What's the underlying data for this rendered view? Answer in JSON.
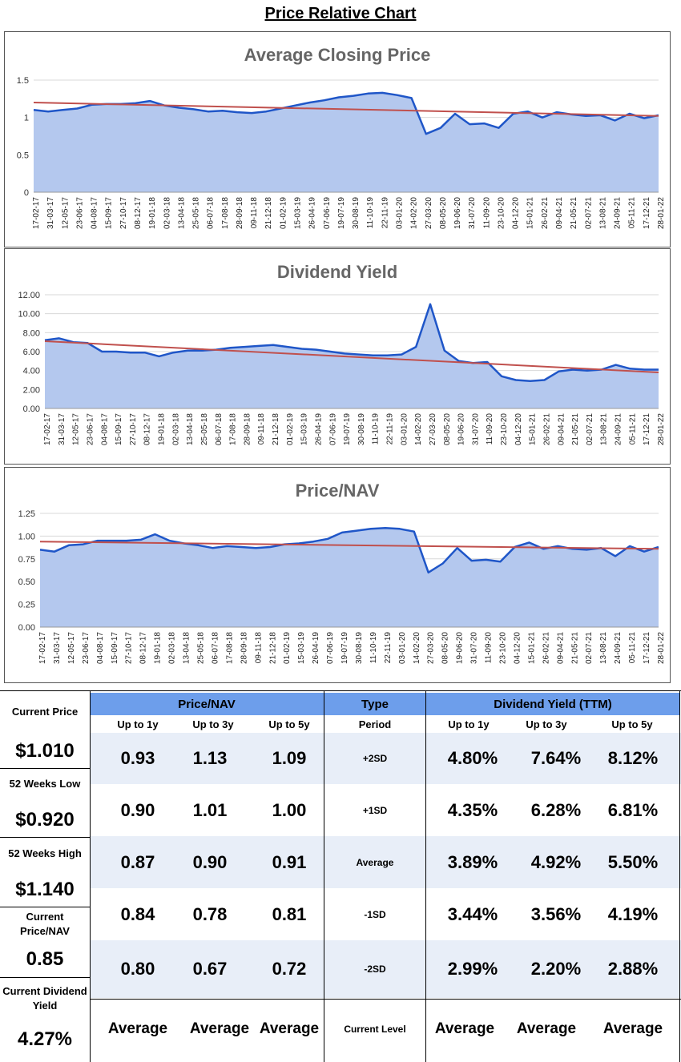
{
  "page": {
    "title": "Price Relative Chart"
  },
  "colors": {
    "area_fill": "#b4c8ee",
    "line": "#1f56c8",
    "trend": "#c0504d",
    "grid": "#d9d9d9",
    "header_blue": "#6d9eeb",
    "band": "#e8eef8"
  },
  "chart_data": [
    {
      "type": "area",
      "title": "Average Closing Price",
      "xlabel": "",
      "ylabel": "",
      "ylim": [
        0,
        1.5
      ],
      "yticks": [
        "0",
        "0.5",
        "1",
        "1.5"
      ],
      "ytick_values": [
        0,
        0.5,
        1,
        1.5
      ],
      "x_tick_labels": [
        "17-02-17",
        "31-03-17",
        "12-05-17",
        "23-06-17",
        "04-08-17",
        "15-09-17",
        "27-10-17",
        "08-12-17",
        "19-01-18",
        "02-03-18",
        "13-04-18",
        "25-05-18",
        "06-07-18",
        "17-08-18",
        "28-09-18",
        "09-11-18",
        "21-12-18",
        "01-02-19",
        "15-03-19",
        "26-04-19",
        "07-06-19",
        "19-07-19",
        "30-08-19",
        "11-10-19",
        "22-11-19",
        "03-01-20",
        "14-02-20",
        "27-03-20",
        "08-05-20",
        "19-06-20",
        "31-07-20",
        "11-09-20",
        "23-10-20",
        "04-12-20",
        "15-01-21",
        "26-02-21",
        "09-04-21",
        "21-05-21",
        "02-07-21",
        "13-08-21",
        "24-09-21",
        "05-11-21",
        "17-12-21",
        "28-01-22"
      ],
      "series": [
        {
          "name": "Average Closing Price",
          "values": [
            1.1,
            1.08,
            1.1,
            1.12,
            1.17,
            1.18,
            1.18,
            1.19,
            1.22,
            1.16,
            1.13,
            1.11,
            1.08,
            1.09,
            1.07,
            1.06,
            1.08,
            1.12,
            1.16,
            1.2,
            1.23,
            1.27,
            1.29,
            1.32,
            1.33,
            1.3,
            1.26,
            0.78,
            0.86,
            1.05,
            0.91,
            0.92,
            0.86,
            1.05,
            1.08,
            1.0,
            1.07,
            1.04,
            1.02,
            1.03,
            0.96,
            1.05,
            0.99,
            1.03
          ]
        }
      ],
      "trend": [
        1.2,
        1.02
      ]
    },
    {
      "type": "area",
      "title": "Dividend Yield",
      "xlabel": "",
      "ylabel": "",
      "ylim": [
        0,
        12
      ],
      "yticks": [
        "0.00",
        "2.00",
        "4.00",
        "6.00",
        "8.00",
        "10.00",
        "12.00"
      ],
      "ytick_values": [
        0,
        2,
        4,
        6,
        8,
        10,
        12
      ],
      "x_tick_labels": [
        "17-02-17",
        "31-03-17",
        "12-05-17",
        "23-06-17",
        "04-08-17",
        "15-09-17",
        "27-10-17",
        "08-12-17",
        "19-01-18",
        "02-03-18",
        "13-04-18",
        "25-05-18",
        "06-07-18",
        "17-08-18",
        "28-09-18",
        "09-11-18",
        "21-12-18",
        "01-02-19",
        "15-03-19",
        "26-04-19",
        "07-06-19",
        "19-07-19",
        "30-08-19",
        "11-10-19",
        "22-11-19",
        "03-01-20",
        "14-02-20",
        "27-03-20",
        "08-05-20",
        "19-06-20",
        "31-07-20",
        "11-09-20",
        "23-10-20",
        "04-12-20",
        "15-01-21",
        "26-02-21",
        "09-04-21",
        "21-05-21",
        "02-07-21",
        "13-08-21",
        "24-09-21",
        "05-11-21",
        "17-12-21",
        "28-01-22"
      ],
      "series": [
        {
          "name": "Dividend Yield",
          "values": [
            7.2,
            7.4,
            7.0,
            6.9,
            6.0,
            6.0,
            5.9,
            5.9,
            5.5,
            5.9,
            6.1,
            6.1,
            6.2,
            6.4,
            6.5,
            6.6,
            6.7,
            6.5,
            6.3,
            6.2,
            6.0,
            5.8,
            5.7,
            5.6,
            5.6,
            5.7,
            6.5,
            11.0,
            6.1,
            5.0,
            4.8,
            4.9,
            3.4,
            3.0,
            2.9,
            3.0,
            3.9,
            4.1,
            4.0,
            4.1,
            4.6,
            4.2,
            4.1,
            4.1
          ]
        }
      ],
      "trend": [
        7.1,
        3.8
      ]
    },
    {
      "type": "area",
      "title": "Price/NAV",
      "xlabel": "",
      "ylabel": "",
      "ylim": [
        0,
        1.25
      ],
      "yticks": [
        "0.00",
        "0.25",
        "0.50",
        "0.75",
        "1.00",
        "1.25"
      ],
      "ytick_values": [
        0,
        0.25,
        0.5,
        0.75,
        1.0,
        1.25
      ],
      "x_tick_labels": [
        "17-02-17",
        "31-03-17",
        "12-05-17",
        "23-06-17",
        "04-08-17",
        "15-09-17",
        "27-10-17",
        "08-12-17",
        "19-01-18",
        "02-03-18",
        "13-04-18",
        "25-05-18",
        "06-07-18",
        "17-08-18",
        "28-09-18",
        "09-11-18",
        "21-12-18",
        "01-02-19",
        "15-03-19",
        "26-04-19",
        "07-06-19",
        "19-07-19",
        "30-08-19",
        "11-10-19",
        "22-11-19",
        "03-01-20",
        "14-02-20",
        "27-03-20",
        "08-05-20",
        "19-06-20",
        "31-07-20",
        "11-09-20",
        "23-10-20",
        "04-12-20",
        "15-01-21",
        "26-02-21",
        "09-04-21",
        "21-05-21",
        "02-07-21",
        "13-08-21",
        "24-09-21",
        "05-11-21",
        "17-12-21",
        "28-01-22"
      ],
      "series": [
        {
          "name": "Price/NAV",
          "values": [
            0.85,
            0.83,
            0.9,
            0.91,
            0.95,
            0.95,
            0.95,
            0.96,
            1.02,
            0.95,
            0.92,
            0.9,
            0.87,
            0.89,
            0.88,
            0.87,
            0.88,
            0.91,
            0.92,
            0.94,
            0.97,
            1.04,
            1.06,
            1.08,
            1.09,
            1.08,
            1.05,
            0.6,
            0.7,
            0.87,
            0.73,
            0.74,
            0.72,
            0.88,
            0.93,
            0.86,
            0.89,
            0.86,
            0.85,
            0.87,
            0.78,
            0.89,
            0.83,
            0.88
          ]
        }
      ],
      "trend": [
        0.94,
        0.86
      ]
    }
  ],
  "table": {
    "left": [
      {
        "label": "Current Price",
        "value": "$1.010"
      },
      {
        "label": "52 Weeks Low",
        "value": "$0.920"
      },
      {
        "label": "52 Weeks High",
        "value": "$1.140"
      },
      {
        "label": "Current Price/NAV",
        "value": "0.85"
      },
      {
        "label": "Current Dividend Yield",
        "value": "4.27%"
      }
    ],
    "pnav_header": "Price/NAV",
    "type_header": "Type",
    "dy_header": "Dividend Yield (TTM)",
    "periods": [
      "Up to 1y",
      "Up to 3y",
      "Up to 5y"
    ],
    "period_label": "Period",
    "rows": [
      {
        "level": "+2SD",
        "pnav": [
          "0.93",
          "1.13",
          "1.09"
        ],
        "dy": [
          "4.80%",
          "7.64%",
          "8.12%"
        ]
      },
      {
        "level": "+1SD",
        "pnav": [
          "0.90",
          "1.01",
          "1.00"
        ],
        "dy": [
          "4.35%",
          "6.28%",
          "6.81%"
        ]
      },
      {
        "level": "Average",
        "pnav": [
          "0.87",
          "0.90",
          "0.91"
        ],
        "dy": [
          "3.89%",
          "4.92%",
          "5.50%"
        ]
      },
      {
        "level": "-1SD",
        "pnav": [
          "0.84",
          "0.78",
          "0.81"
        ],
        "dy": [
          "3.44%",
          "3.56%",
          "4.19%"
        ]
      },
      {
        "level": "-2SD",
        "pnav": [
          "0.80",
          "0.67",
          "0.72"
        ],
        "dy": [
          "2.99%",
          "2.20%",
          "2.88%"
        ]
      }
    ],
    "current_level_label": "Current Level",
    "current_pnav": [
      "Average",
      "Average",
      "Average"
    ],
    "current_dy": [
      "Average",
      "Average",
      "Average"
    ]
  }
}
